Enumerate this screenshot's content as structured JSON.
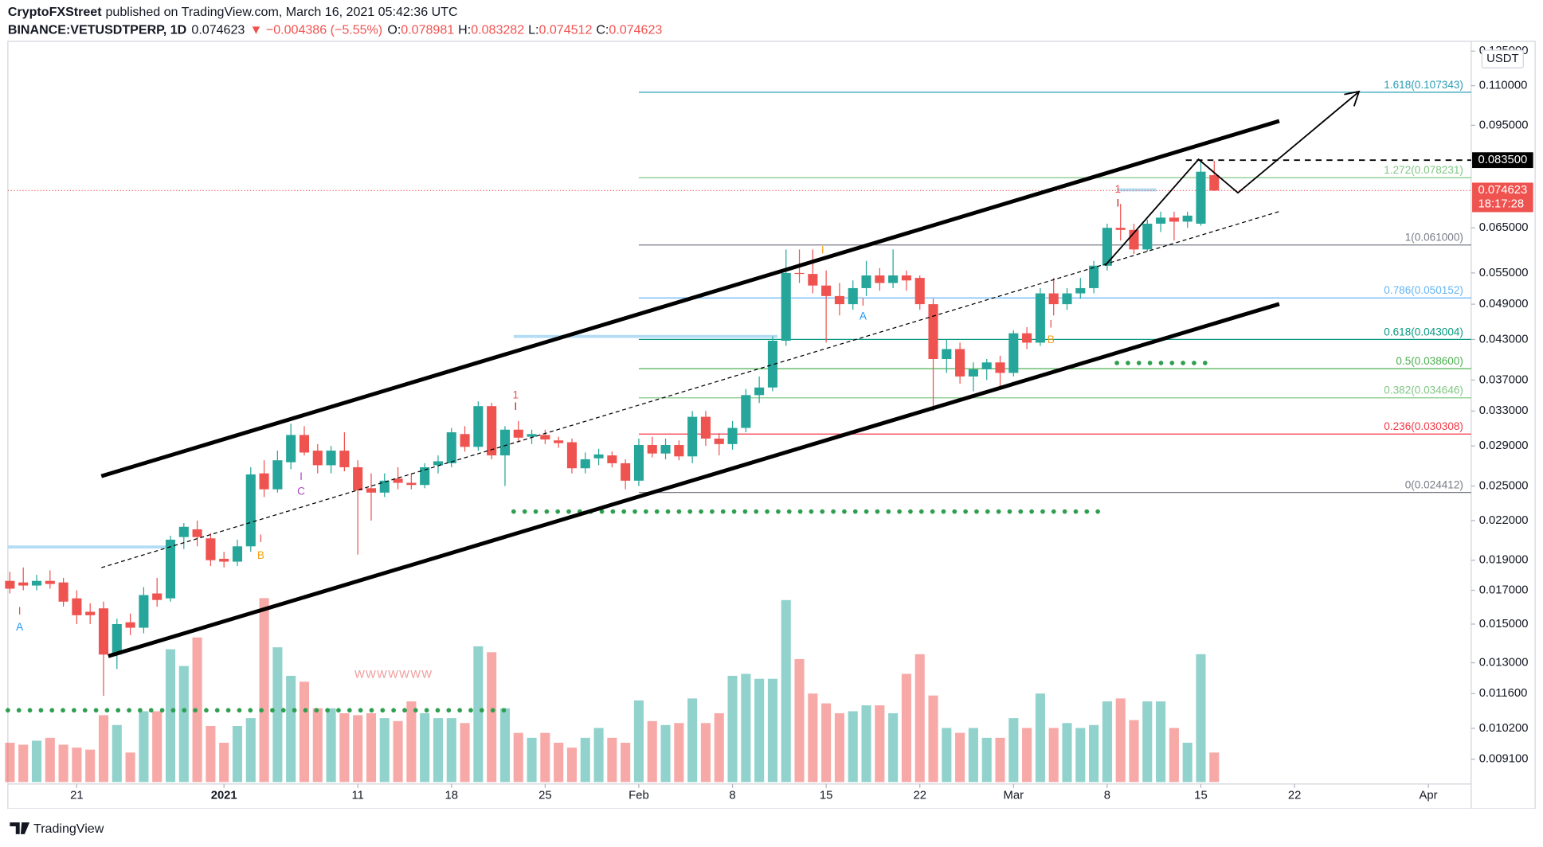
{
  "header": {
    "author": "CryptoFXStreet",
    "published": "published on TradingView.com, March 16, 2021 05:42:36 UTC",
    "symbol": "BINANCE:VETUSDTPERP, 1D",
    "last": "0.074623",
    "change": "▼ −0.004386 (−5.55%)",
    "ohlc": [
      {
        "label": "O:",
        "value": "0.078981"
      },
      {
        "label": "H:",
        "value": "0.083282"
      },
      {
        "label": "L:",
        "value": "0.074512"
      },
      {
        "label": "C:",
        "value": "0.074623"
      }
    ]
  },
  "chart_data": {
    "type": "candlestick",
    "log_scale": true,
    "grid": false,
    "currency": "USDT",
    "up_color": "#26a69a",
    "down_color": "#ef5350",
    "x": [
      0,
      1,
      2,
      3,
      4,
      5,
      6,
      7,
      8,
      9,
      10,
      11,
      12,
      13,
      14,
      15,
      16,
      17,
      18,
      19,
      20,
      21,
      22,
      23,
      24,
      25,
      26,
      27,
      28,
      29,
      30,
      31,
      32,
      33,
      34,
      35,
      36,
      37,
      38,
      39,
      40,
      41,
      42,
      43,
      44,
      45,
      46,
      47,
      48,
      49,
      50,
      51,
      52,
      53,
      54,
      55,
      56,
      57,
      58,
      59,
      60,
      61,
      62,
      63,
      64,
      65,
      66,
      67,
      68,
      69,
      70,
      71,
      72,
      73,
      74,
      75,
      76,
      77,
      78,
      79,
      80,
      81,
      82,
      83,
      84,
      85,
      86,
      87,
      88,
      89,
      90
    ],
    "open": [
      0.0176,
      0.0175,
      0.0173,
      0.0176,
      0.0175,
      0.0165,
      0.0157,
      0.0159,
      0.0134,
      0.0151,
      0.0148,
      0.0168,
      0.0165,
      0.0207,
      0.0213,
      0.0206,
      0.0191,
      0.0189,
      0.02,
      0.0262,
      0.0247,
      0.0273,
      0.0302,
      0.0285,
      0.027,
      0.0285,
      0.0268,
      0.0248,
      0.0244,
      0.0257,
      0.0253,
      0.0251,
      0.027,
      0.0272,
      0.0303,
      0.0289,
      0.0336,
      0.028,
      0.0308,
      0.03,
      0.0302,
      0.0296,
      0.0294,
      0.0267,
      0.0277,
      0.028,
      0.0272,
      0.0255,
      0.0291,
      0.0282,
      0.0291,
      0.0279,
      0.0323,
      0.0298,
      0.0292,
      0.031,
      0.035,
      0.036,
      0.0428,
      0.055,
      0.0548,
      0.0525,
      0.0505,
      0.049,
      0.052,
      0.0545,
      0.053,
      0.0545,
      0.054,
      0.049,
      0.04,
      0.0415,
      0.0375,
      0.0385,
      0.0395,
      0.038,
      0.044,
      0.0425,
      0.051,
      0.049,
      0.051,
      0.052,
      0.0565,
      0.065,
      0.0645,
      0.06,
      0.066,
      0.0675,
      0.0665,
      0.066,
      0.078981
    ],
    "high": [
      0.0182,
      0.0185,
      0.018,
      0.0183,
      0.0178,
      0.017,
      0.0162,
      0.0163,
      0.0153,
      0.0156,
      0.0172,
      0.0178,
      0.0208,
      0.0218,
      0.022,
      0.021,
      0.0196,
      0.0205,
      0.0268,
      0.0275,
      0.0285,
      0.0315,
      0.0312,
      0.0292,
      0.029,
      0.0305,
      0.0275,
      0.0262,
      0.0262,
      0.0268,
      0.0262,
      0.0272,
      0.028,
      0.031,
      0.0312,
      0.0342,
      0.034,
      0.0312,
      0.0318,
      0.0308,
      0.0308,
      0.03,
      0.0298,
      0.0283,
      0.0287,
      0.0284,
      0.0276,
      0.0298,
      0.03,
      0.0298,
      0.0296,
      0.033,
      0.033,
      0.0304,
      0.0318,
      0.0358,
      0.0375,
      0.0435,
      0.06,
      0.06,
      0.06,
      0.0555,
      0.053,
      0.0535,
      0.0575,
      0.056,
      0.06,
      0.0555,
      0.0545,
      0.05,
      0.043,
      0.0425,
      0.0395,
      0.04,
      0.0405,
      0.0445,
      0.045,
      0.052,
      0.054,
      0.052,
      0.054,
      0.0575,
      0.066,
      0.071,
      0.066,
      0.067,
      0.069,
      0.069,
      0.069,
      0.0835,
      0.083282
    ],
    "low": [
      0.0168,
      0.017,
      0.017,
      0.0171,
      0.016,
      0.015,
      0.015,
      0.0115,
      0.0127,
      0.0144,
      0.0145,
      0.016,
      0.0163,
      0.0198,
      0.02,
      0.0186,
      0.0185,
      0.0186,
      0.0196,
      0.024,
      0.0244,
      0.0266,
      0.028,
      0.0262,
      0.0262,
      0.0264,
      0.0194,
      0.022,
      0.024,
      0.0247,
      0.0247,
      0.0248,
      0.0262,
      0.0268,
      0.0284,
      0.0285,
      0.0276,
      0.025,
      0.0294,
      0.0292,
      0.0292,
      0.0288,
      0.0262,
      0.0262,
      0.027,
      0.0268,
      0.0247,
      0.025,
      0.0278,
      0.0276,
      0.0275,
      0.0272,
      0.029,
      0.028,
      0.0286,
      0.0305,
      0.034,
      0.0355,
      0.042,
      0.053,
      0.051,
      0.0425,
      0.047,
      0.048,
      0.0505,
      0.0515,
      0.052,
      0.0515,
      0.048,
      0.033,
      0.038,
      0.0365,
      0.0355,
      0.037,
      0.036,
      0.0375,
      0.0415,
      0.042,
      0.047,
      0.048,
      0.05,
      0.051,
      0.0555,
      0.062,
      0.059,
      0.0595,
      0.064,
      0.062,
      0.065,
      0.0655,
      0.074512
    ],
    "close": [
      0.0171,
      0.0173,
      0.0176,
      0.0174,
      0.0163,
      0.0155,
      0.0155,
      0.0134,
      0.015,
      0.0148,
      0.0167,
      0.0164,
      0.0205,
      0.0215,
      0.0207,
      0.019,
      0.0189,
      0.02,
      0.0261,
      0.0247,
      0.0275,
      0.0302,
      0.0283,
      0.027,
      0.0285,
      0.0268,
      0.0246,
      0.0244,
      0.0255,
      0.0253,
      0.0251,
      0.0268,
      0.0274,
      0.0305,
      0.0289,
      0.0336,
      0.028,
      0.0308,
      0.0299,
      0.0303,
      0.0297,
      0.0293,
      0.0267,
      0.0276,
      0.0281,
      0.0272,
      0.0255,
      0.0291,
      0.0282,
      0.0291,
      0.0279,
      0.0323,
      0.0298,
      0.0292,
      0.031,
      0.035,
      0.036,
      0.0428,
      0.055,
      0.0548,
      0.0525,
      0.0505,
      0.049,
      0.052,
      0.0545,
      0.053,
      0.0545,
      0.0535,
      0.049,
      0.04,
      0.0415,
      0.0375,
      0.0385,
      0.0395,
      0.038,
      0.044,
      0.0425,
      0.051,
      0.049,
      0.051,
      0.052,
      0.0565,
      0.065,
      0.0645,
      0.06,
      0.066,
      0.0675,
      0.0665,
      0.068,
      0.08,
      0.074623
    ],
    "volume": [
      40,
      38,
      42,
      45,
      38,
      35,
      33,
      68,
      58,
      30,
      72,
      72,
      135,
      118,
      147,
      57,
      40,
      57,
      65,
      187,
      137,
      108,
      102,
      75,
      75,
      70,
      68,
      70,
      65,
      62,
      82,
      70,
      65,
      65,
      60,
      138,
      132,
      75,
      50,
      45,
      50,
      40,
      35,
      45,
      55,
      45,
      40,
      83,
      62,
      58,
      60,
      85,
      60,
      70,
      108,
      110,
      105,
      105,
      185,
      125,
      90,
      80,
      70,
      72,
      78,
      78,
      70,
      110,
      130,
      88,
      55,
      50,
      55,
      45,
      45,
      65,
      55,
      90,
      55,
      60,
      55,
      58,
      82,
      85,
      63,
      82,
      82,
      55,
      40,
      130,
      30
    ],
    "volume_ylim": [
      0,
      750
    ],
    "xlim": [
      -0.15,
      109.2
    ],
    "xticks": [
      {
        "value": 5,
        "label": "21"
      },
      {
        "value": 16,
        "label": "2021"
      },
      {
        "value": 26,
        "label": "11"
      },
      {
        "value": 33,
        "label": "18"
      },
      {
        "value": 40,
        "label": "25"
      },
      {
        "value": 47,
        "label": "Feb"
      },
      {
        "value": 54,
        "label": "8"
      },
      {
        "value": 61,
        "label": "15"
      },
      {
        "value": 68,
        "label": "22"
      },
      {
        "value": 75,
        "label": "Mar"
      },
      {
        "value": 82,
        "label": "8"
      },
      {
        "value": 89,
        "label": "15"
      },
      {
        "value": 96,
        "label": "22"
      },
      {
        "value": 106,
        "label": "Apr"
      }
    ],
    "ylim": [
      0.00836,
      0.1282
    ],
    "yticks": [
      {
        "value": 0.125,
        "label": "0.125000"
      },
      {
        "value": 0.11,
        "label": "0.110000"
      },
      {
        "value": 0.095,
        "label": "0.095000"
      },
      {
        "value": 0.065,
        "label": "0.065000"
      },
      {
        "value": 0.055,
        "label": "0.055000"
      },
      {
        "value": 0.049,
        "label": "0.049000"
      },
      {
        "value": 0.043,
        "label": "0.043000"
      },
      {
        "value": 0.037,
        "label": "0.037000"
      },
      {
        "value": 0.033,
        "label": "0.033000"
      },
      {
        "value": 0.029,
        "label": "0.029000"
      },
      {
        "value": 0.025,
        "label": "0.025000"
      },
      {
        "value": 0.022,
        "label": "0.022000"
      },
      {
        "value": 0.019,
        "label": "0.019000"
      },
      {
        "value": 0.017,
        "label": "0.017000"
      },
      {
        "value": 0.015,
        "label": "0.015000"
      },
      {
        "value": 0.013,
        "label": "0.013000"
      },
      {
        "value": 0.0116,
        "label": "0.011600"
      },
      {
        "value": 0.0102,
        "label": "0.010200"
      },
      {
        "value": 0.0091,
        "label": "0.009100"
      }
    ],
    "last_price": {
      "value": 0.074623,
      "label": "0.074623",
      "countdown": "18:17:28",
      "color": "#ef5350"
    },
    "horizontal_line": {
      "value": 0.0835,
      "label": "0.083500",
      "color": "#000000"
    },
    "fib_start": 47,
    "fib_levels": [
      {
        "price": 0.107343,
        "label": "1.618(0.107343)",
        "color": "#2a9db5"
      },
      {
        "price": 0.078231,
        "label": "1.272(0.078231)",
        "color": "#81c784"
      },
      {
        "price": 0.061,
        "label": "1(0.061000)",
        "color": "#787b86"
      },
      {
        "price": 0.050152,
        "label": "0.786(0.050152)",
        "color": "#64b5f6"
      },
      {
        "price": 0.043004,
        "label": "0.618(0.043004)",
        "color": "#089981"
      },
      {
        "price": 0.0386,
        "label": "0.5(0.038600)",
        "color": "#4caf50"
      },
      {
        "price": 0.034646,
        "label": "0.382(0.034646)",
        "color": "#81c784"
      },
      {
        "price": 0.030308,
        "label": "0.236(0.030308)",
        "color": "#f23645"
      },
      {
        "price": 0.024412,
        "label": "0(0.024412)",
        "color": "#787b86"
      }
    ]
  },
  "td_labels": [
    "A",
    "I",
    "I",
    "B",
    "I",
    "C",
    "1",
    "I",
    "I",
    "I",
    "A",
    "1",
    "I",
    "I",
    "B",
    "WWWWWWW"
  ],
  "footer": {
    "brand": "TradingView"
  }
}
